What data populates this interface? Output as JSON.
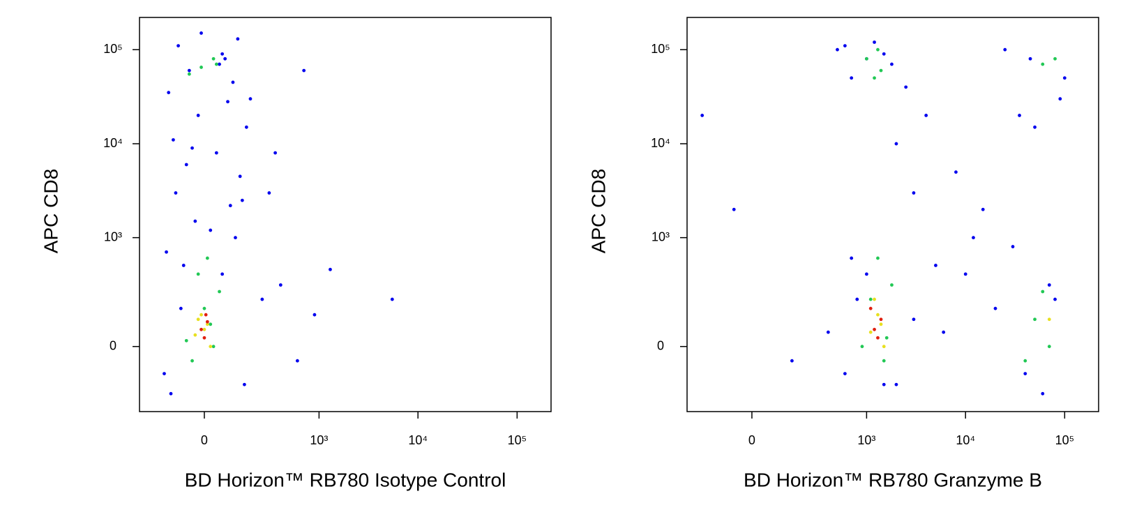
{
  "chart_data": [
    {
      "type": "scatter",
      "xlabel": "BD Horizon™ RB780 Isotype Control",
      "ylabel": "APC CD8",
      "xscale": "logicle",
      "yscale": "logicle",
      "xlim": [
        -300,
        220000
      ],
      "ylim": [
        -330,
        220000
      ],
      "xticks": [
        0,
        {
          "value": 1000,
          "label": "10³"
        },
        {
          "value": 10000,
          "label": "10⁴"
        },
        {
          "value": 100000,
          "label": "10⁵"
        }
      ],
      "yticks": [
        0,
        {
          "value": 1000,
          "label": "10³"
        },
        {
          "value": 10000,
          "label": "10⁴"
        },
        {
          "value": 100000,
          "label": "10⁵"
        }
      ],
      "series": [
        {
          "color": "#0000ee",
          "x": [
            -120,
            150,
            -80,
            60,
            -140,
            110,
            -30,
            90,
            -100,
            130,
            -60,
            40,
            -110,
            160,
            -20,
            80,
            -130,
            100,
            -50,
            70,
            -90,
            120,
            -10,
            50,
            250,
            400,
            700,
            1300,
            5500,
            600,
            350,
            900,
            300,
            -150,
            180,
            -70,
            20,
            140,
            -40,
            60
          ],
          "y": [
            -200,
            -150,
            150,
            400,
            700,
            1000,
            1500,
            2200,
            3000,
            4500,
            6000,
            8000,
            11000,
            15000,
            20000,
            28000,
            35000,
            45000,
            60000,
            80000,
            110000,
            130000,
            150000,
            70000,
            200,
            300,
            60000,
            450,
            200,
            -50,
            8000,
            120,
            3000,
            -100,
            30000,
            500,
            1200,
            2500,
            9000,
            90000
          ]
        },
        {
          "color": "#22c855",
          "x": [
            -40,
            30,
            -60,
            20,
            0,
            50,
            -20,
            10,
            -50,
            40,
            -10,
            30
          ],
          "y": [
            -50,
            0,
            20,
            80,
            150,
            250,
            400,
            600,
            55000,
            70000,
            65000,
            80000
          ]
        },
        {
          "color": "#e8e020",
          "x": [
            -30,
            10,
            -10,
            20,
            0,
            -20
          ],
          "y": [
            40,
            80,
            120,
            0,
            60,
            100
          ]
        },
        {
          "color": "#e02010",
          "x": [
            -10,
            10,
            0,
            5
          ],
          "y": [
            60,
            90,
            30,
            120
          ]
        }
      ]
    },
    {
      "type": "scatter",
      "xlabel": "BD Horizon™ RB780 Granzyme B",
      "ylabel": "APC CD8",
      "xscale": "logicle",
      "yscale": "logicle",
      "xlim": [
        -300,
        220000
      ],
      "ylim": [
        -330,
        220000
      ],
      "xticks": [
        0,
        {
          "value": 1000,
          "label": "10³"
        },
        {
          "value": 10000,
          "label": "10⁴"
        },
        {
          "value": 100000,
          "label": "10⁵"
        }
      ],
      "yticks": [
        0,
        {
          "value": 1000,
          "label": "10³"
        },
        {
          "value": 10000,
          "label": "10⁴"
        },
        {
          "value": 100000,
          "label": "10⁵"
        }
      ],
      "series": [
        {
          "color": "#0000ee",
          "x": [
            400,
            600,
            800,
            1000,
            2000,
            3000,
            500,
            1500,
            2500,
            700,
            1200,
            1800,
            4000,
            8000,
            15000,
            30000,
            50000,
            90000,
            70000,
            40000,
            20000,
            10000,
            6000,
            3000,
            2000,
            1000,
            600,
            60000,
            80000,
            100000,
            25000,
            45000,
            12000,
            5000,
            35000,
            150,
            -200,
            -60,
            1500,
            700
          ],
          "y": [
            50,
            -100,
            200,
            400,
            -150,
            100,
            100000,
            90000,
            40000,
            50000,
            120000,
            70000,
            20000,
            5000,
            2000,
            800,
            15000,
            30000,
            300,
            -100,
            150,
            400,
            50,
            3000,
            10000,
            80000,
            110000,
            -200,
            200,
            50000,
            100000,
            80000,
            1000,
            500,
            20000,
            -50,
            20000,
            2000,
            -150,
            600
          ]
        },
        {
          "color": "#22c855",
          "x": [
            900,
            1100,
            1500,
            1800,
            1300,
            1000,
            1400,
            1200,
            50000,
            70000,
            60000,
            40000,
            1300,
            1600,
            80000,
            60000
          ],
          "y": [
            0,
            200,
            -50,
            300,
            600,
            80000,
            60000,
            50000,
            100,
            0,
            250,
            -50,
            100000,
            30,
            80000,
            70000
          ]
        },
        {
          "color": "#e8e020",
          "x": [
            1100,
            1300,
            1500,
            1200,
            1400,
            70000
          ],
          "y": [
            50,
            120,
            0,
            200,
            80,
            100
          ]
        },
        {
          "color": "#e02010",
          "x": [
            1200,
            1400,
            1300,
            1100
          ],
          "y": [
            60,
            100,
            30,
            150
          ]
        }
      ]
    }
  ]
}
